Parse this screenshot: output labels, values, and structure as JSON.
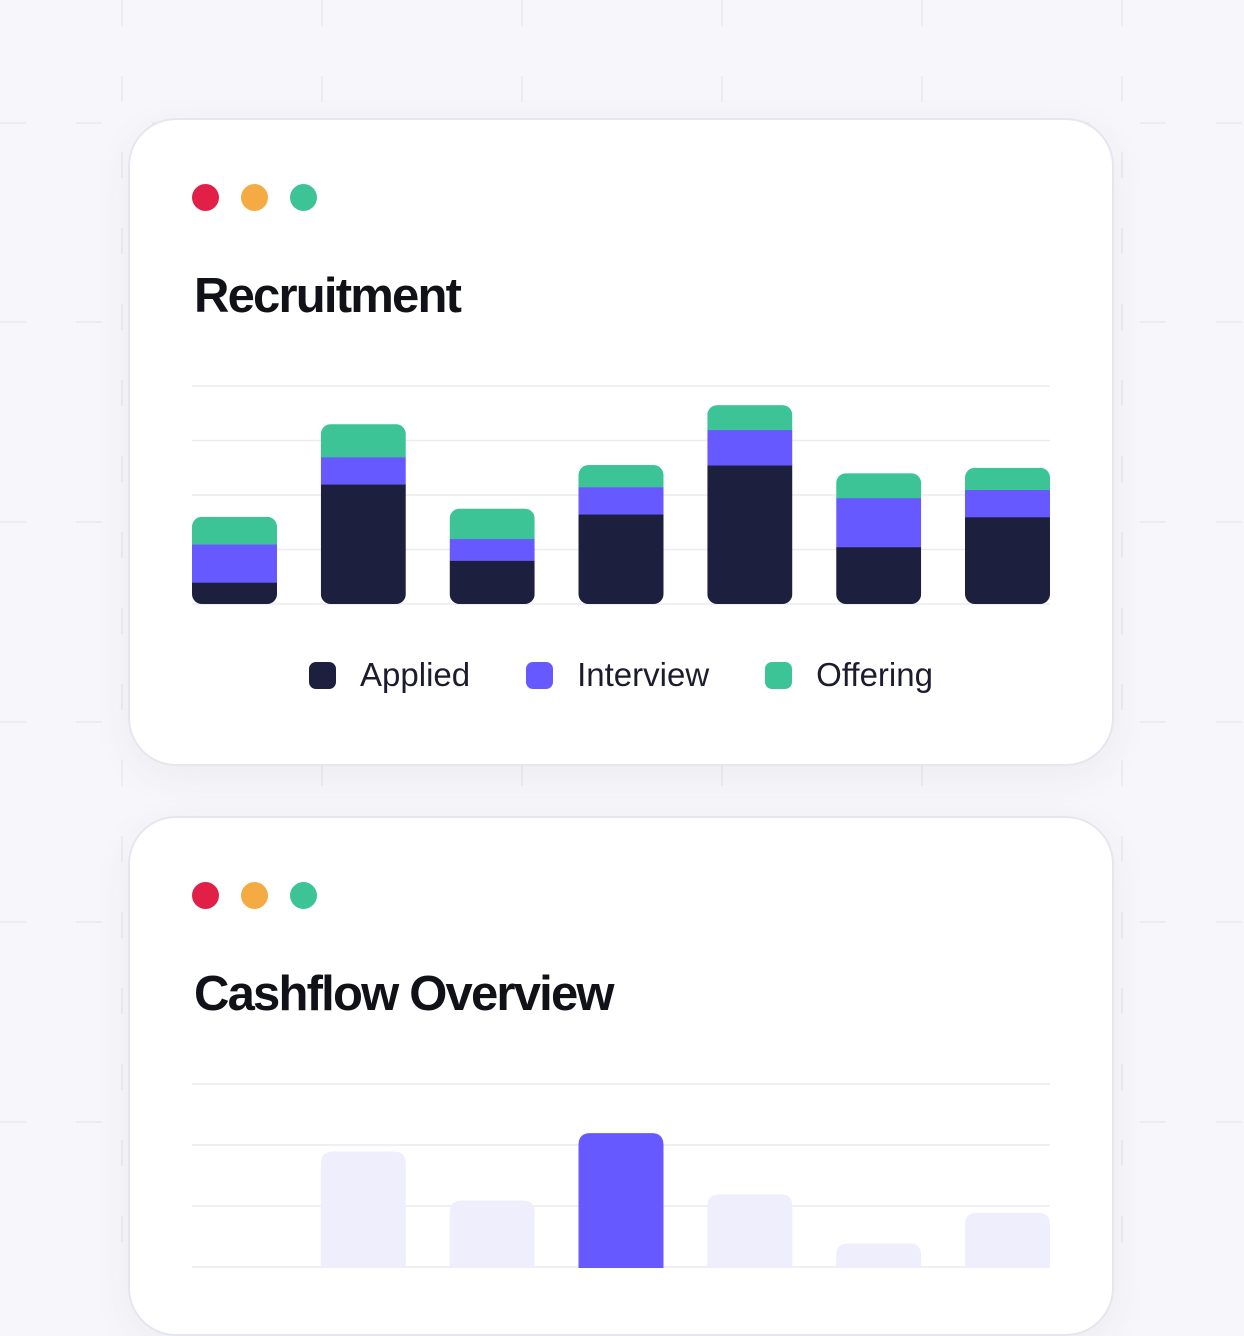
{
  "colors": {
    "applied": "#1d1f3f",
    "interview": "#6559ff",
    "offering": "#3cc496",
    "dot_red": "#e21f47",
    "dot_orange": "#f5ab44",
    "dot_green": "#3cc496",
    "muted_bar": "#efeefd",
    "highlight_bar": "#6559ff"
  },
  "window_controls": [
    "close-dot",
    "minimize-dot",
    "maximize-dot"
  ],
  "recruitment": {
    "title": "Recruitment",
    "legend": [
      "Applied",
      "Interview",
      "Offering"
    ]
  },
  "cashflow": {
    "title": "Cashflow Overview"
  },
  "chart_data": [
    {
      "type": "bar",
      "stacked": true,
      "title": "Recruitment",
      "xlabel": "",
      "ylabel": "",
      "ylim": [
        0,
        4
      ],
      "grid": true,
      "legend_placement": "bottom-center",
      "categories": [
        "",
        "",
        "",
        "",
        "",
        "",
        ""
      ],
      "series": [
        {
          "name": "Applied",
          "values": [
            0.4,
            2.2,
            0.8,
            1.65,
            2.55,
            1.05,
            1.6
          ]
        },
        {
          "name": "Interview",
          "values": [
            0.7,
            0.5,
            0.4,
            0.5,
            0.65,
            0.9,
            0.5
          ]
        },
        {
          "name": "Offering",
          "values": [
            0.5,
            0.6,
            0.55,
            0.4,
            0.45,
            0.45,
            0.4
          ]
        }
      ]
    },
    {
      "type": "bar",
      "title": "Cashflow Overview",
      "xlabel": "",
      "ylabel": "",
      "ylim": [
        0,
        3
      ],
      "grid": true,
      "categories": [
        "",
        "",
        "",
        "",
        "",
        "",
        ""
      ],
      "highlight_index": 3,
      "values": [
        0,
        1.9,
        1.1,
        2.2,
        1.2,
        0.4,
        0.9
      ]
    }
  ]
}
